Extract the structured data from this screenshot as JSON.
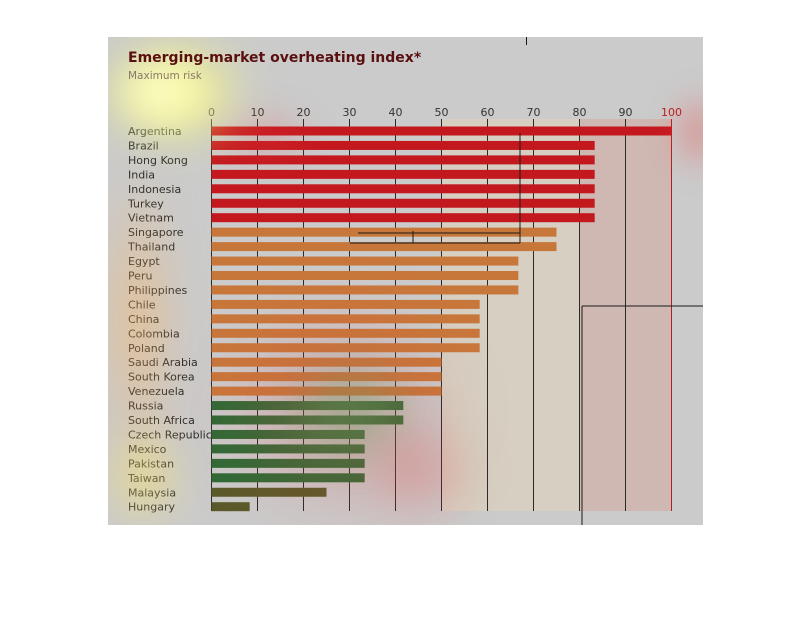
{
  "chart_data": {
    "type": "bar",
    "orientation": "horizontal",
    "title": "Emerging-market overheating index*",
    "subtitle": "Maximum risk",
    "xlim": [
      0,
      100
    ],
    "ticks": [
      0,
      10,
      20,
      30,
      40,
      50,
      60,
      70,
      80,
      90,
      100
    ],
    "categories": [
      "Argentina",
      "Brazil",
      "Hong Kong",
      "India",
      "Indonesia",
      "Turkey",
      "Vietnam",
      "Singapore",
      "Thailand",
      "Egypt",
      "Peru",
      "Philippines",
      "Chile",
      "China",
      "Colombia",
      "Poland",
      "Saudi Arabia",
      "South Korea",
      "Venezuela",
      "Russia",
      "South Africa",
      "Czech Republic",
      "Mexico",
      "Pakistan",
      "Taiwan",
      "Malaysia",
      "Hungary"
    ],
    "values": [
      100,
      83.3,
      83.3,
      83.3,
      83.3,
      83.3,
      83.3,
      75,
      75,
      66.7,
      66.7,
      66.7,
      58.3,
      58.3,
      58.3,
      58.3,
      50,
      50,
      50,
      41.7,
      41.7,
      33.3,
      33.3,
      33.3,
      33.3,
      25,
      8.3
    ],
    "colors": {
      "red": "#c4181f",
      "orange": "#c8773b",
      "green": "#2f6a36",
      "olive": "#5a5a2a",
      "panel": "#cbcbcb",
      "band_light": "#d6cfc2",
      "band_pink": "#cfb8b2",
      "hundred_tick": "#b21e1e"
    },
    "grid": true,
    "heatmap_overlay": true
  }
}
